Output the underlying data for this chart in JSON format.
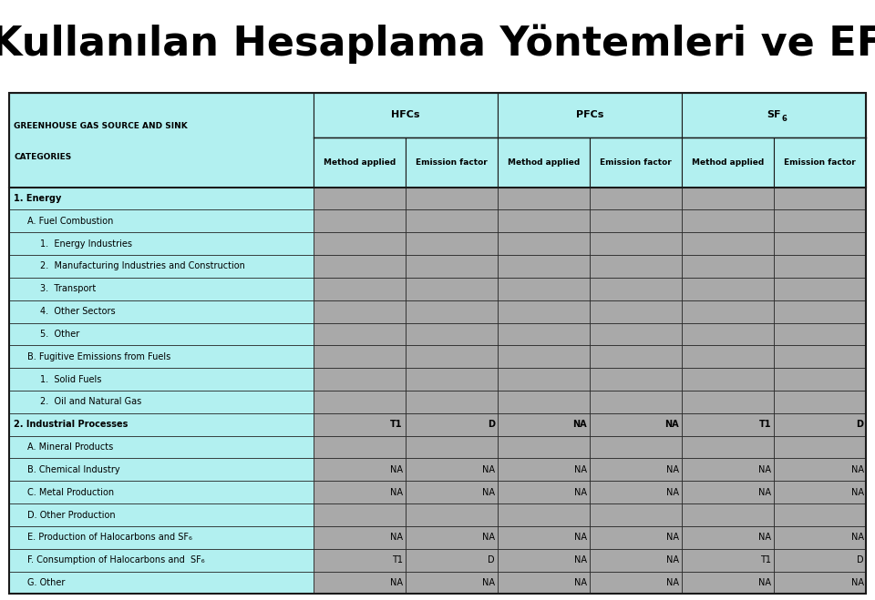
{
  "title": "Kullanılan Hesaplama Yöntemleri ve EF",
  "title_fontsize": 32,
  "header_bg": "#b2f0f0",
  "gray_bg": "#a9a9a9",
  "border_color": "#1a1a1a",
  "col_groups": [
    "HFCs",
    "PFCs",
    "SF₆"
  ],
  "col_subheaders": [
    "Method applied",
    "Emission factor"
  ],
  "rows": [
    {
      "label": "1. Energy",
      "indent": 0,
      "bold": true,
      "data": [
        "",
        "",
        "",
        "",
        "",
        ""
      ]
    },
    {
      "label": "A. Fuel Combustion",
      "indent": 1,
      "bold": false,
      "data": [
        "",
        "",
        "",
        "",
        "",
        ""
      ]
    },
    {
      "label": "1.  Energy Industries",
      "indent": 2,
      "bold": false,
      "data": [
        "",
        "",
        "",
        "",
        "",
        ""
      ]
    },
    {
      "label": "2.  Manufacturing Industries and Construction",
      "indent": 2,
      "bold": false,
      "data": [
        "",
        "",
        "",
        "",
        "",
        ""
      ]
    },
    {
      "label": "3.  Transport",
      "indent": 2,
      "bold": false,
      "data": [
        "",
        "",
        "",
        "",
        "",
        ""
      ]
    },
    {
      "label": "4.  Other Sectors",
      "indent": 2,
      "bold": false,
      "data": [
        "",
        "",
        "",
        "",
        "",
        ""
      ]
    },
    {
      "label": "5.  Other",
      "indent": 2,
      "bold": false,
      "data": [
        "",
        "",
        "",
        "",
        "",
        ""
      ]
    },
    {
      "label": "B. Fugitive Emissions from Fuels",
      "indent": 1,
      "bold": false,
      "data": [
        "",
        "",
        "",
        "",
        "",
        ""
      ]
    },
    {
      "label": "1.  Solid Fuels",
      "indent": 2,
      "bold": false,
      "data": [
        "",
        "",
        "",
        "",
        "",
        ""
      ]
    },
    {
      "label": "2.  Oil and Natural Gas",
      "indent": 2,
      "bold": false,
      "data": [
        "",
        "",
        "",
        "",
        "",
        ""
      ]
    },
    {
      "label": "2. Industrial Processes",
      "indent": 0,
      "bold": true,
      "data": [
        "T1",
        "D",
        "NA",
        "NA",
        "T1",
        "D"
      ]
    },
    {
      "label": "A. Mineral Products",
      "indent": 1,
      "bold": false,
      "data": [
        "",
        "",
        "",
        "",
        "",
        ""
      ]
    },
    {
      "label": "B. Chemical Industry",
      "indent": 1,
      "bold": false,
      "data": [
        "NA",
        "NA",
        "NA",
        "NA",
        "NA",
        "NA"
      ]
    },
    {
      "label": "C. Metal Production",
      "indent": 1,
      "bold": false,
      "data": [
        "NA",
        "NA",
        "NA",
        "NA",
        "NA",
        "NA"
      ]
    },
    {
      "label": "D. Other Production",
      "indent": 1,
      "bold": false,
      "data": [
        "",
        "",
        "",
        "",
        "",
        ""
      ]
    },
    {
      "label": "E. Production of Halocarbons and SF₆",
      "indent": 1,
      "bold": false,
      "data": [
        "NA",
        "NA",
        "NA",
        "NA",
        "NA",
        "NA"
      ]
    },
    {
      "label": "F. Consumption of Halocarbons and  SF₆",
      "indent": 1,
      "bold": false,
      "data": [
        "T1",
        "D",
        "NA",
        "NA",
        "T1",
        "D"
      ]
    },
    {
      "label": "G. Other",
      "indent": 1,
      "bold": false,
      "data": [
        "NA",
        "NA",
        "NA",
        "NA",
        "NA",
        "NA"
      ]
    }
  ]
}
